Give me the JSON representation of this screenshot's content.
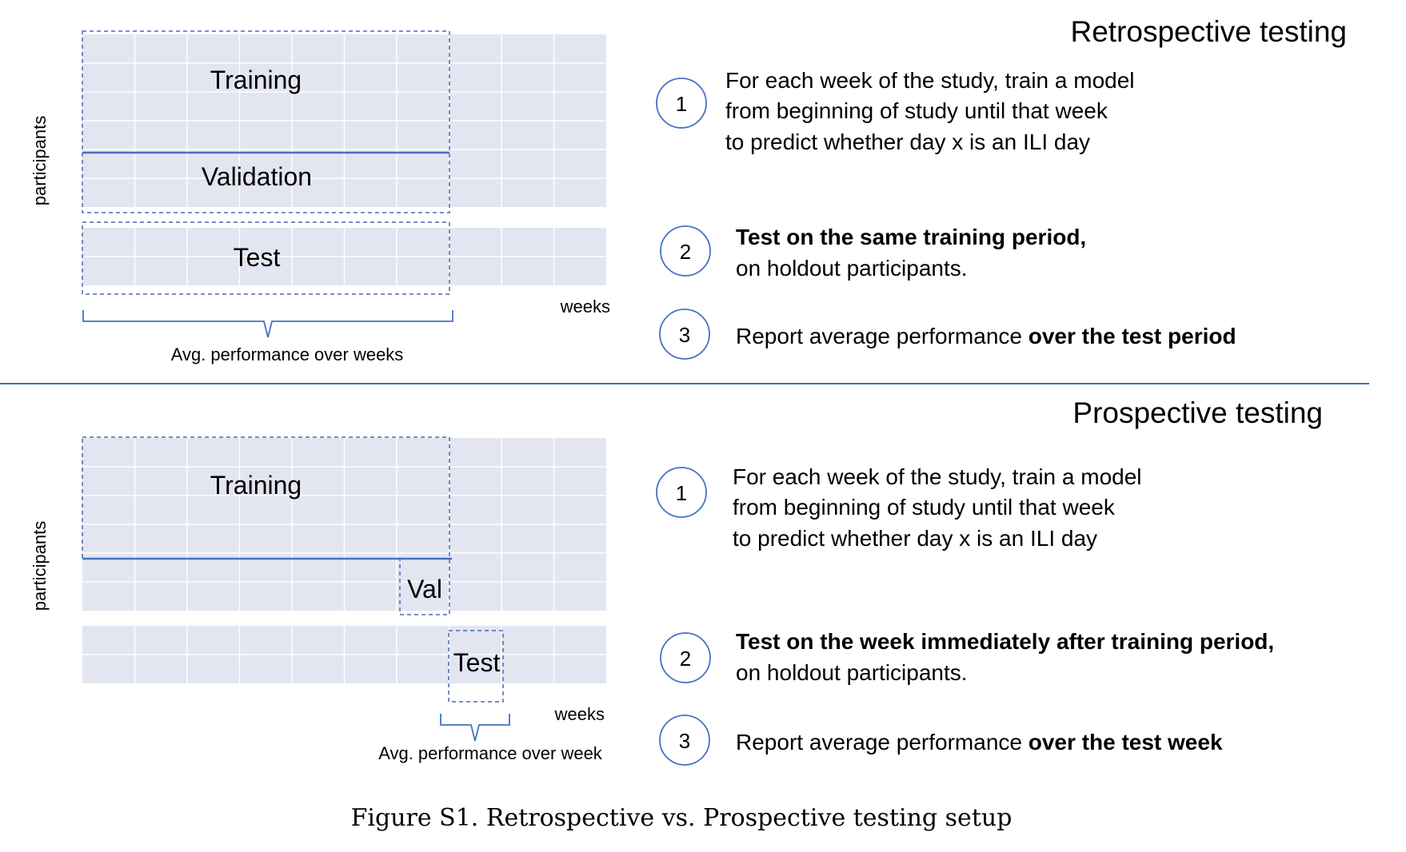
{
  "colors": {
    "grid_fill": "#e3e5f1",
    "grid_line": "#ffffff",
    "accent": "#4472c4",
    "dash": "#4a68b0",
    "text": "#000000"
  },
  "retrospective": {
    "heading": "Retrospective testing",
    "y_axis_label": "participants",
    "x_axis_label": "weeks",
    "blocks": {
      "training": "Training",
      "validation": "Validation",
      "test": "Test"
    },
    "brace_label": "Avg. performance over weeks",
    "steps": [
      {
        "number": "1",
        "lines": [
          "For each week of the study, train a model",
          "from beginning of study until that week",
          "to predict whether day x is an ILI day"
        ]
      },
      {
        "number": "2",
        "bold": "Test on the same training period,",
        "normal": "on holdout participants."
      },
      {
        "number": "3",
        "normal": "Report average performance ",
        "bold": "over the test period"
      }
    ]
  },
  "prospective": {
    "heading": "Prospective testing",
    "y_axis_label": "participants",
    "x_axis_label": "weeks",
    "blocks": {
      "training": "Training",
      "validation": "Val",
      "test": "Test"
    },
    "brace_label": "Avg. performance over week",
    "steps": [
      {
        "number": "1",
        "lines": [
          "For each week of the study, train a model",
          "from beginning of study until that week",
          "to predict whether day x is an ILI day"
        ]
      },
      {
        "number": "2",
        "bold": "Test on the week immediately after training period,",
        "normal": "on holdout participants."
      },
      {
        "number": "3",
        "normal": "Report average performance ",
        "bold": "over the test week"
      }
    ]
  },
  "caption": "Figure S1.  Retrospective vs. Prospective testing setup"
}
